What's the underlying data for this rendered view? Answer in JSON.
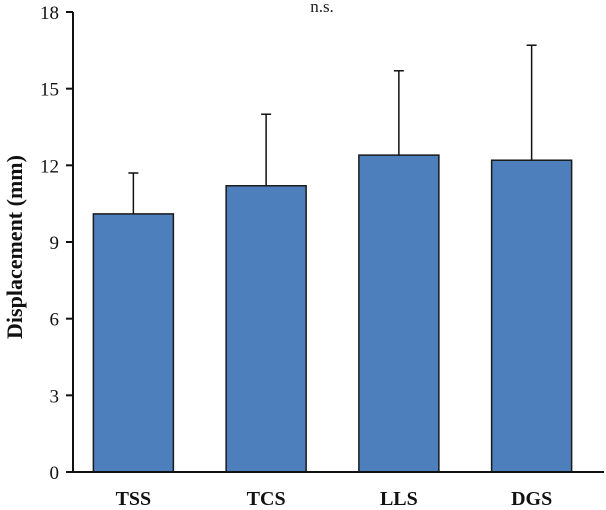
{
  "chart_data": {
    "type": "bar",
    "title": "",
    "annotation": "n.s.",
    "xlabel": "",
    "ylabel": "Displacement (mm)",
    "categories": [
      "TSS",
      "TCS",
      "LLS",
      "DGS"
    ],
    "values": [
      10.1,
      11.2,
      12.4,
      12.2
    ],
    "error_plus": [
      1.6,
      2.8,
      3.3,
      4.5
    ],
    "ylim": [
      0,
      18
    ],
    "yticks": [
      "0",
      "3",
      "6",
      "9",
      "12",
      "15",
      "18"
    ],
    "bar_color": "#4e7fbd",
    "bar_edge_color": "#1a1a1a",
    "grid": false,
    "legend": "none"
  }
}
